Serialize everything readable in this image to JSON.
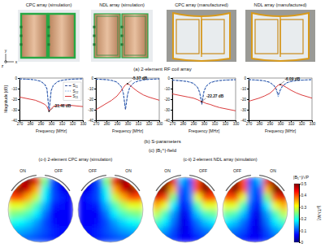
{
  "figure": {
    "panels": [
      {
        "title": "CPC array (simulation)"
      },
      {
        "title": "NDL array (simulation)"
      },
      {
        "title": "CPC array (manufactured)"
      },
      {
        "title": "NDL array (manufactured)"
      }
    ],
    "row_labels": [
      "(a) 2-element RF coil array",
      "(b) S-parameters",
      "(c) |B₁⁺|-field"
    ],
    "axes_icon": {
      "vertical": "y",
      "out": "z",
      "horizontal": "x"
    }
  },
  "chart_data": [
    {
      "type": "line",
      "xlabel": "Frequency [MHz]",
      "ylabel": "Magnitude [dB]",
      "x": [
        270,
        280,
        285,
        290,
        294,
        296,
        298,
        300,
        302,
        306,
        310,
        315,
        320,
        330
      ],
      "xlim": [
        270,
        330
      ],
      "ylim": [
        -40,
        0
      ],
      "xticks": [
        270,
        280,
        290,
        300,
        310,
        320,
        330
      ],
      "yticks": [
        -40,
        -30,
        -20,
        -10,
        0
      ],
      "grid": false,
      "legend": "upper right",
      "series": [
        {
          "name": "S₁₁",
          "color": "#1f3d8f",
          "line_style": "dashed",
          "values": [
            -0.8,
            -1.2,
            -1.8,
            -3,
            -6,
            -10,
            -31.46,
            -12,
            -7,
            -3.5,
            -2.2,
            -1.5,
            -1.1,
            -0.7
          ]
        },
        {
          "name": "S₂₂",
          "color": "#3b7dd8",
          "line_style": "dotted",
          "values": [
            -0.9,
            -1.3,
            -1.9,
            -3.2,
            -6.5,
            -11,
            -30,
            -11.5,
            -6.5,
            -3.3,
            -2.1,
            -1.4,
            -1,
            -0.7
          ]
        },
        {
          "name": "S₂₁",
          "color": "#d62728",
          "line_style": "solid",
          "values": [
            -18,
            -20,
            -21,
            -23,
            -25,
            -27,
            -31.46,
            -29,
            -27,
            -26,
            -25.5,
            -25.5,
            -26,
            -27
          ]
        }
      ],
      "annotations": [
        {
          "x": 298,
          "y": -31.46,
          "label": "-31.46 dB"
        }
      ]
    },
    {
      "type": "line",
      "xlabel": "Frequency [MHz]",
      "x": [
        270,
        280,
        285,
        290,
        294,
        296,
        298,
        300,
        302,
        306,
        310,
        315,
        320,
        330
      ],
      "xlim": [
        270,
        330
      ],
      "ylim": [
        -40,
        0
      ],
      "xticks": [
        270,
        280,
        290,
        300,
        310,
        320,
        330
      ],
      "yticks": [
        -40,
        -30,
        -20,
        -10,
        0
      ],
      "grid": false,
      "series": [
        {
          "color": "#1f3d8f",
          "line_style": "dashed",
          "values": [
            -1,
            -1.5,
            -2.2,
            -3.8,
            -8,
            -14,
            -30,
            -16,
            -9,
            -4.5,
            -2.8,
            -1.8,
            -1.3,
            -0.8
          ]
        },
        {
          "color": "#3b7dd8",
          "line_style": "dotted",
          "values": [
            -1.1,
            -1.6,
            -2.4,
            -4,
            -8.5,
            -15,
            -28,
            -15,
            -8.5,
            -4.3,
            -2.7,
            -1.7,
            -1.2,
            -0.8
          ]
        },
        {
          "color": "#d62728",
          "line_style": "solid",
          "values": [
            -30,
            -24,
            -21,
            -17,
            -12,
            -9,
            -6.5,
            -5.37,
            -6.5,
            -10,
            -13,
            -16,
            -18,
            -21
          ]
        }
      ],
      "annotations": [
        {
          "x": 300,
          "y": -5.37,
          "label": "-5.37 dB"
        }
      ]
    },
    {
      "type": "line",
      "xlabel": "Frequency [MHz]",
      "x": [
        270,
        280,
        285,
        290,
        294,
        296,
        298,
        300,
        302,
        306,
        310,
        315,
        320,
        330
      ],
      "xlim": [
        270,
        330
      ],
      "ylim": [
        -40,
        0
      ],
      "xticks": [
        270,
        280,
        290,
        300,
        310,
        320,
        330
      ],
      "yticks": [
        -40,
        -30,
        -20,
        -10,
        0
      ],
      "grid": false,
      "series": [
        {
          "color": "#1f3d8f",
          "line_style": "dashed",
          "values": [
            -2,
            -2.8,
            -3.5,
            -5,
            -9,
            -14,
            -25,
            -13,
            -8,
            -4.5,
            -3.2,
            -2.4,
            -2,
            -1.6
          ]
        },
        {
          "color": "#3b7dd8",
          "line_style": "dotted",
          "values": [
            -1.8,
            -2.5,
            -3.2,
            -4.8,
            -8.5,
            -13,
            -22,
            -12,
            -7.5,
            -4.2,
            -3,
            -2.2,
            -1.8,
            -1.5
          ]
        },
        {
          "color": "#d62728",
          "line_style": "solid",
          "values": [
            -15,
            -17,
            -18,
            -19,
            -20.5,
            -21.5,
            -22.27,
            -23,
            -24,
            -25,
            -26.5,
            -28,
            -29,
            -31
          ]
        }
      ],
      "annotations": [
        {
          "x": 298,
          "y": -22.27,
          "label": "-22.27 dB"
        }
      ]
    },
    {
      "type": "line",
      "xlabel": "Frequency [MHz]",
      "x": [
        270,
        280,
        285,
        290,
        294,
        296,
        298,
        300,
        302,
        306,
        310,
        315,
        320,
        330
      ],
      "xlim": [
        270,
        330
      ],
      "ylim": [
        -40,
        0
      ],
      "xticks": [
        270,
        280,
        290,
        300,
        310,
        320,
        330
      ],
      "yticks": [
        -40,
        -30,
        -20,
        -10,
        0
      ],
      "grid": false,
      "series": [
        {
          "color": "#1f3d8f",
          "line_style": "dashed",
          "values": [
            -1.5,
            -2,
            -2.6,
            -4,
            -7,
            -10,
            -16,
            -11,
            -7.5,
            -4.5,
            -3.2,
            -2.4,
            -2,
            -1.5
          ]
        },
        {
          "color": "#3b7dd8",
          "line_style": "dotted",
          "values": [
            -1.6,
            -2.2,
            -2.8,
            -4.3,
            -7.5,
            -11,
            -18,
            -12,
            -8,
            -4.8,
            -3.3,
            -2.5,
            -2,
            -1.6
          ]
        },
        {
          "color": "#d62728",
          "line_style": "solid",
          "values": [
            -22,
            -19,
            -17,
            -14.5,
            -11,
            -8.5,
            -6.8,
            -6.09,
            -6.8,
            -9,
            -11.5,
            -14,
            -16,
            -19
          ]
        }
      ],
      "annotations": [
        {
          "x": 300,
          "y": -6.09,
          "label": "-6.09 dB"
        }
      ]
    }
  ],
  "field_maps": {
    "subtitles": [
      "(c-i) 2-element CPC array (simulation)",
      "(c-ii) 2-element NDL array (simulation)"
    ],
    "colorbar": {
      "label": "|B₁⁺|/√P",
      "unit": "[μT/√W]",
      "range": [
        0,
        0.5
      ],
      "ticks": [
        0,
        0.1,
        0.2,
        0.3,
        0.4,
        0.5
      ]
    },
    "maps": [
      {
        "labels": [
          "ON",
          "OFF"
        ],
        "cells": [
          [
            0.3,
            0.45,
            0.5,
            0.45,
            0.25,
            0.1,
            0.05,
            0.05
          ],
          [
            0.45,
            0.5,
            0.45,
            0.35,
            0.2,
            0.1,
            0.06,
            0.05
          ],
          [
            0.4,
            0.4,
            0.35,
            0.28,
            0.18,
            0.1,
            0.08,
            0.06
          ],
          [
            0.3,
            0.3,
            0.27,
            0.22,
            0.15,
            0.08,
            0.07,
            0.06
          ],
          [
            0.25,
            0.24,
            0.22,
            0.18,
            0.12,
            0.06,
            0.06,
            0.06
          ],
          [
            0.2,
            0.19,
            0.17,
            0.14,
            0.1,
            0.07,
            0.06,
            0.06
          ],
          [
            0.16,
            0.15,
            0.14,
            0.12,
            0.1,
            0.08,
            0.07,
            0.07
          ],
          [
            0.12,
            0.12,
            0.11,
            0.1,
            0.09,
            0.08,
            0.07,
            0.07
          ]
        ]
      },
      {
        "labels": [
          "OFF",
          "ON"
        ],
        "cells": [
          [
            0.05,
            0.05,
            0.1,
            0.25,
            0.45,
            0.5,
            0.45,
            0.3
          ],
          [
            0.05,
            0.06,
            0.1,
            0.2,
            0.35,
            0.45,
            0.5,
            0.45
          ],
          [
            0.06,
            0.08,
            0.1,
            0.18,
            0.28,
            0.35,
            0.4,
            0.4
          ],
          [
            0.06,
            0.07,
            0.08,
            0.15,
            0.22,
            0.27,
            0.3,
            0.3
          ],
          [
            0.06,
            0.06,
            0.06,
            0.12,
            0.18,
            0.22,
            0.24,
            0.25
          ],
          [
            0.06,
            0.06,
            0.07,
            0.1,
            0.14,
            0.17,
            0.19,
            0.2
          ],
          [
            0.07,
            0.07,
            0.08,
            0.1,
            0.12,
            0.14,
            0.15,
            0.16
          ],
          [
            0.07,
            0.07,
            0.08,
            0.09,
            0.1,
            0.11,
            0.12,
            0.12
          ]
        ]
      },
      {
        "labels": [
          "ON",
          "OFF"
        ],
        "cells": [
          [
            0.35,
            0.5,
            0.45,
            0.15,
            0.1,
            0.4,
            0.5,
            0.35
          ],
          [
            0.5,
            0.5,
            0.35,
            0.1,
            0.12,
            0.4,
            0.5,
            0.45
          ],
          [
            0.45,
            0.4,
            0.25,
            0.08,
            0.12,
            0.3,
            0.4,
            0.4
          ],
          [
            0.35,
            0.3,
            0.18,
            0.06,
            0.1,
            0.22,
            0.3,
            0.3
          ],
          [
            0.28,
            0.22,
            0.14,
            0.05,
            0.08,
            0.16,
            0.22,
            0.24
          ],
          [
            0.22,
            0.18,
            0.12,
            0.05,
            0.07,
            0.12,
            0.16,
            0.18
          ],
          [
            0.17,
            0.14,
            0.1,
            0.05,
            0.06,
            0.1,
            0.12,
            0.14
          ],
          [
            0.13,
            0.11,
            0.09,
            0.06,
            0.06,
            0.08,
            0.1,
            0.11
          ]
        ]
      },
      {
        "labels": [
          "OFF",
          "ON"
        ],
        "cells": [
          [
            0.35,
            0.5,
            0.4,
            0.1,
            0.15,
            0.45,
            0.5,
            0.35
          ],
          [
            0.45,
            0.5,
            0.4,
            0.12,
            0.1,
            0.35,
            0.5,
            0.5
          ],
          [
            0.4,
            0.4,
            0.3,
            0.12,
            0.08,
            0.25,
            0.4,
            0.45
          ],
          [
            0.3,
            0.3,
            0.22,
            0.1,
            0.06,
            0.18,
            0.3,
            0.35
          ],
          [
            0.24,
            0.22,
            0.16,
            0.08,
            0.05,
            0.14,
            0.22,
            0.28
          ],
          [
            0.18,
            0.16,
            0.12,
            0.07,
            0.05,
            0.12,
            0.18,
            0.22
          ],
          [
            0.14,
            0.12,
            0.1,
            0.06,
            0.05,
            0.1,
            0.14,
            0.17
          ],
          [
            0.11,
            0.1,
            0.08,
            0.06,
            0.06,
            0.09,
            0.11,
            0.13
          ]
        ]
      }
    ]
  }
}
